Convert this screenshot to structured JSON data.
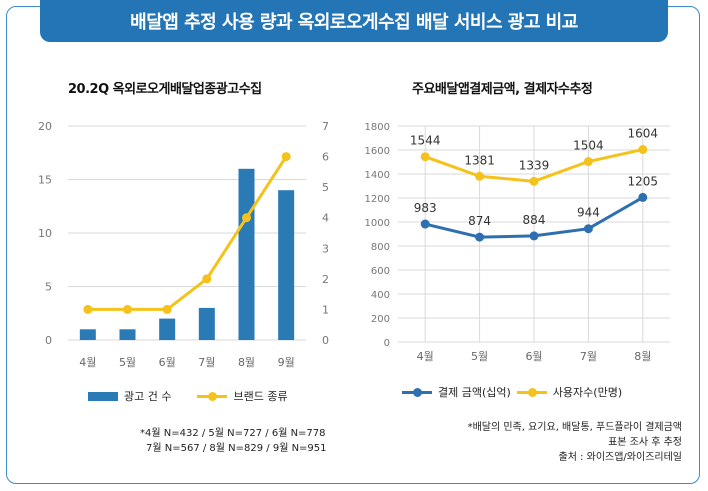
{
  "banner": {
    "title": "배달앱 추정 사용 량과 옥외로오게수집 배달 서비스 광고 비교"
  },
  "chart_data": [
    {
      "type": "bar",
      "title": "20.2Q 옥외로오게배달업종광고수집",
      "categories": [
        "4월",
        "5월",
        "6월",
        "7월",
        "8월",
        "9월"
      ],
      "series": [
        {
          "name": "광고 건 수",
          "type": "bar",
          "axis": "left",
          "values": [
            1,
            1,
            2,
            3,
            16,
            14
          ]
        },
        {
          "name": "브랜드 종류",
          "type": "line",
          "axis": "right",
          "values": [
            1,
            1,
            1,
            2,
            4,
            6
          ]
        }
      ],
      "y_left": {
        "min": 0,
        "max": 20,
        "ticks": [
          0,
          5,
          10,
          15,
          20
        ]
      },
      "y_right": {
        "min": 0,
        "max": 7,
        "ticks": [
          0,
          1,
          2,
          3,
          4,
          5,
          6,
          7
        ]
      },
      "grid": true,
      "legend": "bottom"
    },
    {
      "type": "line",
      "title": "주요배달앱결제금액, 결제자수추정",
      "categories": [
        "4월",
        "5월",
        "6월",
        "7월",
        "8월"
      ],
      "series": [
        {
          "name": "결제 금액(십억)",
          "values": [
            983,
            874,
            884,
            944,
            1205
          ]
        },
        {
          "name": "사용자수(만명)",
          "values": [
            1544,
            1381,
            1339,
            1504,
            1604
          ]
        }
      ],
      "ylim": [
        0,
        1800
      ],
      "yticks": [
        0,
        200,
        400,
        600,
        800,
        1000,
        1200,
        1400,
        1600,
        1800
      ],
      "grid": true,
      "legend": "bottom"
    }
  ],
  "colors": {
    "banner": "#2475b6",
    "bar": "#2a7ab6",
    "yellow": "#f5c21b",
    "blue_line": "#2e6fb0",
    "grid": "#d9d9d9"
  },
  "notes": {
    "left_line1": "*4월 N=432 / 5월 N=727 / 6월 N=778",
    "left_line2": "7월 N=567 / 8월 N=829 / 9월 N=951",
    "right_line1": "*배달의 민족, 요기요, 배달통, 푸드플라이 결제금액",
    "right_line2": "표본 조사 후 추정",
    "source": "출처 : 와이즈앱/와이즈리테일"
  }
}
